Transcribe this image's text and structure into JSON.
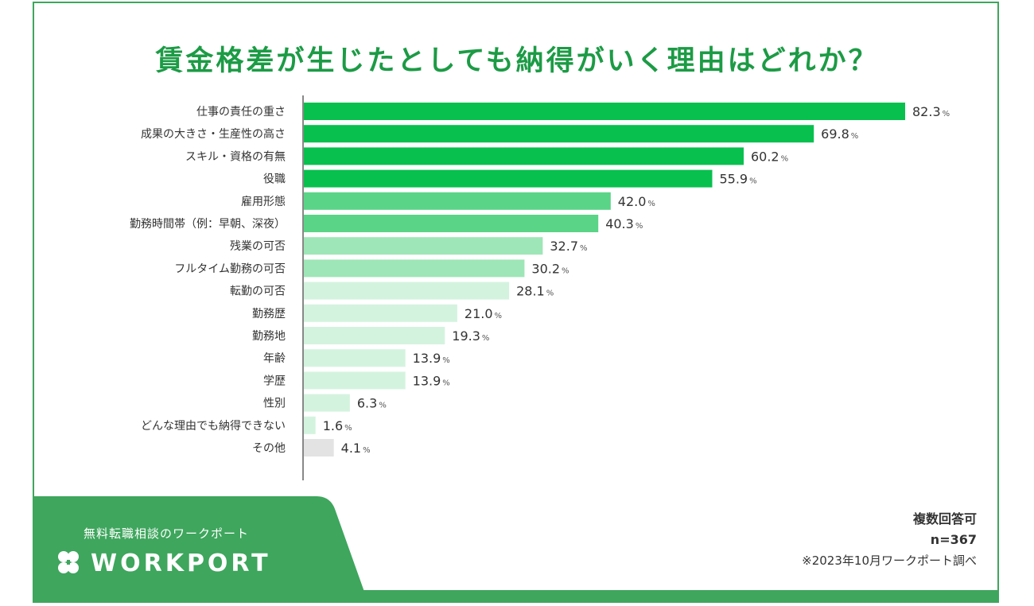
{
  "brand": {
    "tagline": "無料転職相談のワークポート",
    "logo_text": "WORKPORT",
    "green": "#3ea65d"
  },
  "notes": {
    "multi": "複数回答可",
    "n": "n=367",
    "source": "※2023年10月ワークポート調べ"
  },
  "chart_data": {
    "type": "bar",
    "orientation": "horizontal",
    "title": "賃金格差が生じたとしても納得がいく理由はどれか？",
    "unit": "%",
    "xlim": [
      0,
      100
    ],
    "categories": [
      "仕事の責任の重さ",
      "成果の大きさ・生産性の高さ",
      "スキル・資格の有無",
      "役職",
      "雇用形態",
      "勤務時間帯（例：早朝、深夜）",
      "残業の可否",
      "フルタイム勤務の可否",
      "転勤の可否",
      "勤務歴",
      "勤務地",
      "年齢",
      "学歴",
      "性別",
      "どんな理由でも納得できない",
      "その他"
    ],
    "values": [
      82.3,
      69.8,
      60.2,
      55.9,
      42.0,
      40.3,
      32.7,
      30.2,
      28.1,
      21.0,
      19.3,
      13.9,
      13.9,
      6.3,
      1.6,
      4.1
    ],
    "value_labels": [
      "82.3",
      "69.8",
      "60.2",
      "55.9",
      "42.0",
      "40.3",
      "32.7",
      "30.2",
      "28.1",
      "21.0",
      "19.3",
      "13.9",
      "13.9",
      "6.3",
      "1.6",
      "4.1"
    ],
    "colors": [
      "#08c04e",
      "#08c04e",
      "#08c04e",
      "#08c04e",
      "#5ad487",
      "#5ad487",
      "#9ee6b7",
      "#9ee6b7",
      "#d4f3df",
      "#d4f3df",
      "#d4f3df",
      "#d4f3df",
      "#d4f3df",
      "#d4f3df",
      "#d4f3df",
      "#e3e3e3"
    ]
  }
}
